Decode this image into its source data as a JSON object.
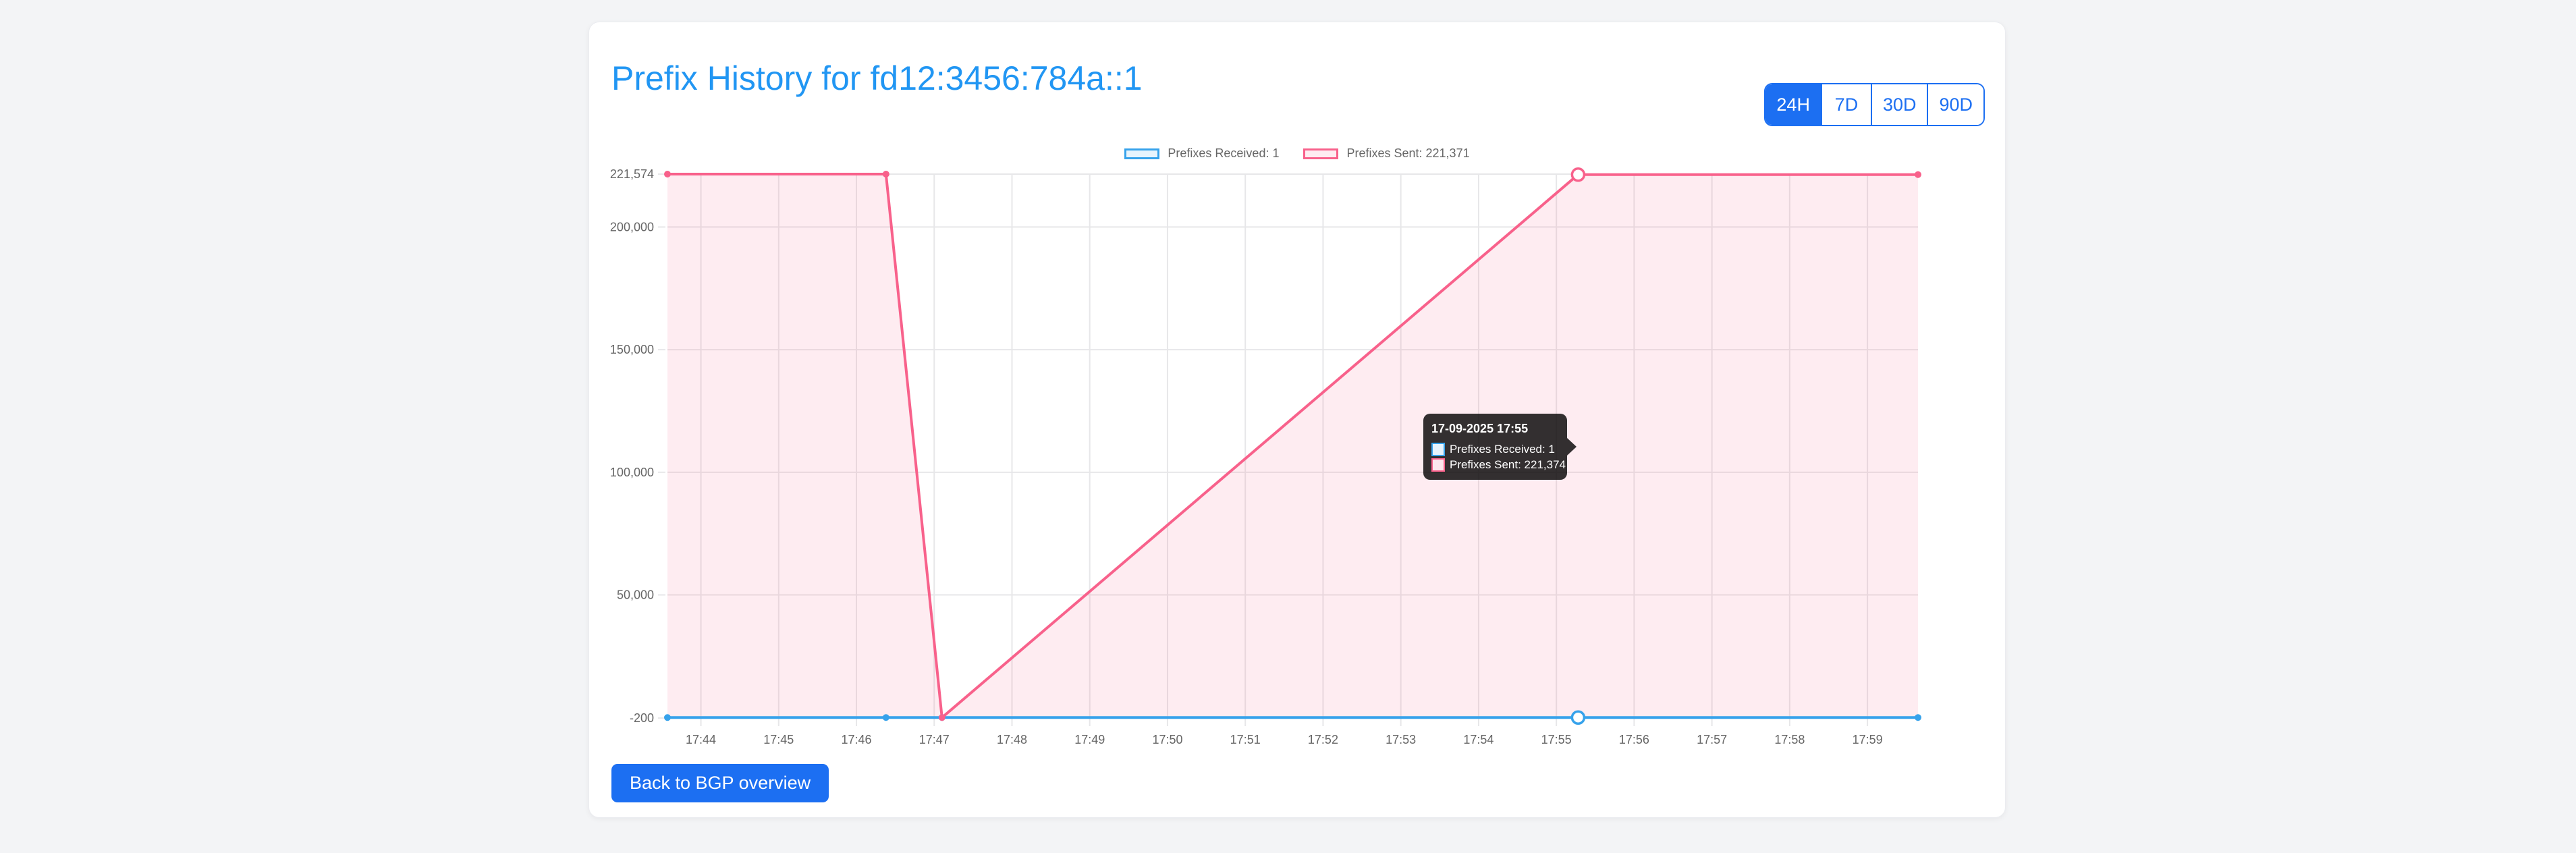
{
  "page": {
    "title": "Prefix History for fd12:3456:784a::1"
  },
  "time_range": {
    "options": [
      {
        "label": "24H",
        "active": true
      },
      {
        "label": "7D",
        "active": false
      },
      {
        "label": "30D",
        "active": false
      },
      {
        "label": "90D",
        "active": false
      }
    ]
  },
  "chart_data": {
    "type": "line",
    "x_axis": {
      "unit": "time",
      "min_minute": 43.57,
      "max_minute": 59.65,
      "ticks": [
        {
          "minute": 44,
          "label": "17:44"
        },
        {
          "minute": 45,
          "label": "17:45"
        },
        {
          "minute": 46,
          "label": "17:46"
        },
        {
          "minute": 47,
          "label": "17:47"
        },
        {
          "minute": 48,
          "label": "17:48"
        },
        {
          "minute": 49,
          "label": "17:49"
        },
        {
          "minute": 50,
          "label": "17:50"
        },
        {
          "minute": 51,
          "label": "17:51"
        },
        {
          "minute": 52,
          "label": "17:52"
        },
        {
          "minute": 53,
          "label": "17:53"
        },
        {
          "minute": 54,
          "label": "17:54"
        },
        {
          "minute": 55,
          "label": "17:55"
        },
        {
          "minute": 56,
          "label": "17:56"
        },
        {
          "minute": 57,
          "label": "17:57"
        },
        {
          "minute": 58,
          "label": "17:58"
        },
        {
          "minute": 59,
          "label": "17:59"
        }
      ]
    },
    "y_axis": {
      "min": -200,
      "max": 221574,
      "ticks": [
        {
          "value": 221574,
          "label": "221,574"
        },
        {
          "value": 200000,
          "label": "200,000"
        },
        {
          "value": 150000,
          "label": "150,000"
        },
        {
          "value": 100000,
          "label": "100,000"
        },
        {
          "value": 50000,
          "label": "50,000"
        },
        {
          "value": -200,
          "label": "-200"
        }
      ]
    },
    "grid": true,
    "legend_position": "top",
    "series": [
      {
        "name": "Prefixes Received",
        "legend_label": "Prefixes Received: 1",
        "color": "#36a2eb",
        "fill_color": "rgba(54,162,235,0.12)",
        "area": false,
        "points": [
          {
            "x": 43.57,
            "y": 1
          },
          {
            "x": 46.38,
            "y": 1
          },
          {
            "x": 47.1,
            "y": 1
          },
          {
            "x": 55.28,
            "y": 1
          },
          {
            "x": 59.65,
            "y": 1
          }
        ]
      },
      {
        "name": "Prefixes Sent",
        "legend_label": "Prefixes Sent: 221,371",
        "color": "#f8618b",
        "fill_color": "rgba(248,97,139,0.12)",
        "area": true,
        "points": [
          {
            "x": 43.57,
            "y": 221574
          },
          {
            "x": 46.38,
            "y": 221574
          },
          {
            "x": 47.1,
            "y": 1
          },
          {
            "x": 55.28,
            "y": 221374
          },
          {
            "x": 59.65,
            "y": 221371
          }
        ]
      }
    ],
    "hover_x": 55.28
  },
  "tooltip": {
    "title": "17-09-2025 17:55",
    "rows": [
      {
        "label": "Prefixes Received: 1",
        "color": "#36a2eb",
        "fill": "#e7f3fc"
      },
      {
        "label": "Prefixes Sent: 221,374",
        "color": "#f8618b",
        "fill": "#fde7ed"
      }
    ]
  },
  "footer": {
    "back_button_label": "Back to BGP overview"
  }
}
